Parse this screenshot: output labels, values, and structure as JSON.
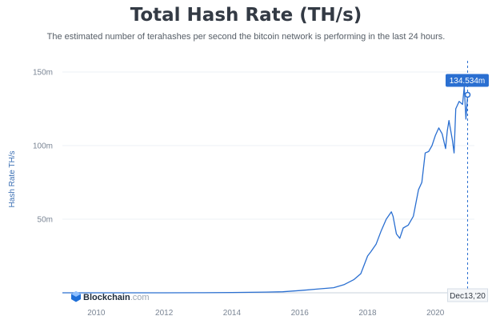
{
  "chart_data": {
    "type": "line",
    "title": "Total Hash Rate (TH/s)",
    "subtitle": "The estimated number of terahashes per second the bitcoin network is performing in the last 24 hours.",
    "ylabel": "Hash Rate TH/s",
    "xlabel": "",
    "xlim": [
      2009.0,
      2021.15
    ],
    "ylim": [
      0,
      150000000
    ],
    "x_ticks": [
      {
        "value": 2010,
        "label": "2010"
      },
      {
        "value": 2012,
        "label": "2012"
      },
      {
        "value": 2014,
        "label": "2014"
      },
      {
        "value": 2016,
        "label": "2016"
      },
      {
        "value": 2018,
        "label": "2018"
      },
      {
        "value": 2020,
        "label": "2020"
      }
    ],
    "y_ticks": [
      {
        "value": 50000000,
        "label": "50m"
      },
      {
        "value": 100000000,
        "label": "100m"
      },
      {
        "value": 150000000,
        "label": "150m"
      }
    ],
    "grid": true,
    "line_color": "#2a6fd1",
    "series": [
      {
        "x": [
          2009.0,
          2010.0,
          2011.0,
          2012.0,
          2013.0,
          2014.0,
          2015.0,
          2015.5,
          2016.0,
          2016.5,
          2017.0,
          2017.3,
          2017.6,
          2017.8,
          2018.0,
          2018.1,
          2018.25,
          2018.4,
          2018.55,
          2018.7,
          2018.75,
          2018.85,
          2018.95,
          2019.05,
          2019.2,
          2019.35,
          2019.5,
          2019.6,
          2019.7,
          2019.8,
          2019.9,
          2020.0,
          2020.1,
          2020.2,
          2020.3,
          2020.35,
          2020.4,
          2020.5,
          2020.55,
          2020.6,
          2020.7,
          2020.8,
          2020.85,
          2020.9,
          2020.95
        ],
        "y": [
          0,
          0,
          5000,
          20000,
          40000,
          200000,
          500000,
          700000,
          1500000,
          2500000,
          3500000,
          5500000,
          9000000,
          13000000,
          25000000,
          28000000,
          33000000,
          42000000,
          50000000,
          55000000,
          52000000,
          40000000,
          37000000,
          44000000,
          46000000,
          52000000,
          70000000,
          75000000,
          95000000,
          96000000,
          100000000,
          107000000,
          112000000,
          108000000,
          98000000,
          110000000,
          117000000,
          104000000,
          95000000,
          125000000,
          130000000,
          128000000,
          140000000,
          118000000,
          134534000
        ]
      }
    ],
    "annotation": {
      "x": 2020.95,
      "y": 134534000,
      "value_label": "134.534m",
      "date_label": "Dec13,'20"
    },
    "brand": {
      "name": "Blockchain",
      "suffix": ".com"
    }
  }
}
